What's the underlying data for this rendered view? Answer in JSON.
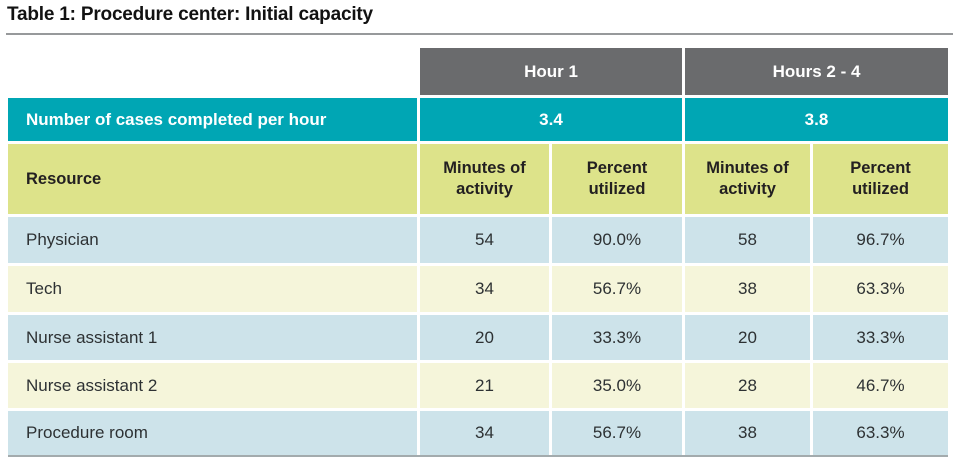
{
  "title": "Table 1: Procedure center: Initial capacity",
  "table": {
    "groups": [
      {
        "label": "Hour 1",
        "cases_per_hour": "3.4"
      },
      {
        "label": "Hours 2 - 4",
        "cases_per_hour": "3.8"
      }
    ],
    "cases_row_label": "Number of cases completed per hour",
    "columns": {
      "resource": "Resource",
      "minutes_line1": "Minutes of",
      "minutes_line2": "activity",
      "percent_line1": "Percent",
      "percent_line2": "utilized"
    },
    "rows": [
      {
        "resource": "Physician",
        "h1_minutes": "54",
        "h1_percent": "90.0%",
        "h24_minutes": "58",
        "h24_percent": "96.7%"
      },
      {
        "resource": "Tech",
        "h1_minutes": "34",
        "h1_percent": "56.7%",
        "h24_minutes": "38",
        "h24_percent": "63.3%"
      },
      {
        "resource": "Nurse assistant 1",
        "h1_minutes": "20",
        "h1_percent": "33.3%",
        "h24_minutes": "20",
        "h24_percent": "33.3%"
      },
      {
        "resource": "Nurse assistant 2",
        "h1_minutes": "21",
        "h1_percent": "35.0%",
        "h24_minutes": "28",
        "h24_percent": "46.7%"
      },
      {
        "resource": "Procedure room",
        "h1_minutes": "34",
        "h1_percent": "56.7%",
        "h24_minutes": "38",
        "h24_percent": "63.3%"
      }
    ]
  },
  "colors": {
    "header_gray": "#6a6b6d",
    "teal": "#00a6b4",
    "yellow_green": "#dde38a",
    "row_blue": "#cde3ea",
    "row_cream": "#f5f5da",
    "rule_gray": "#97999b"
  }
}
